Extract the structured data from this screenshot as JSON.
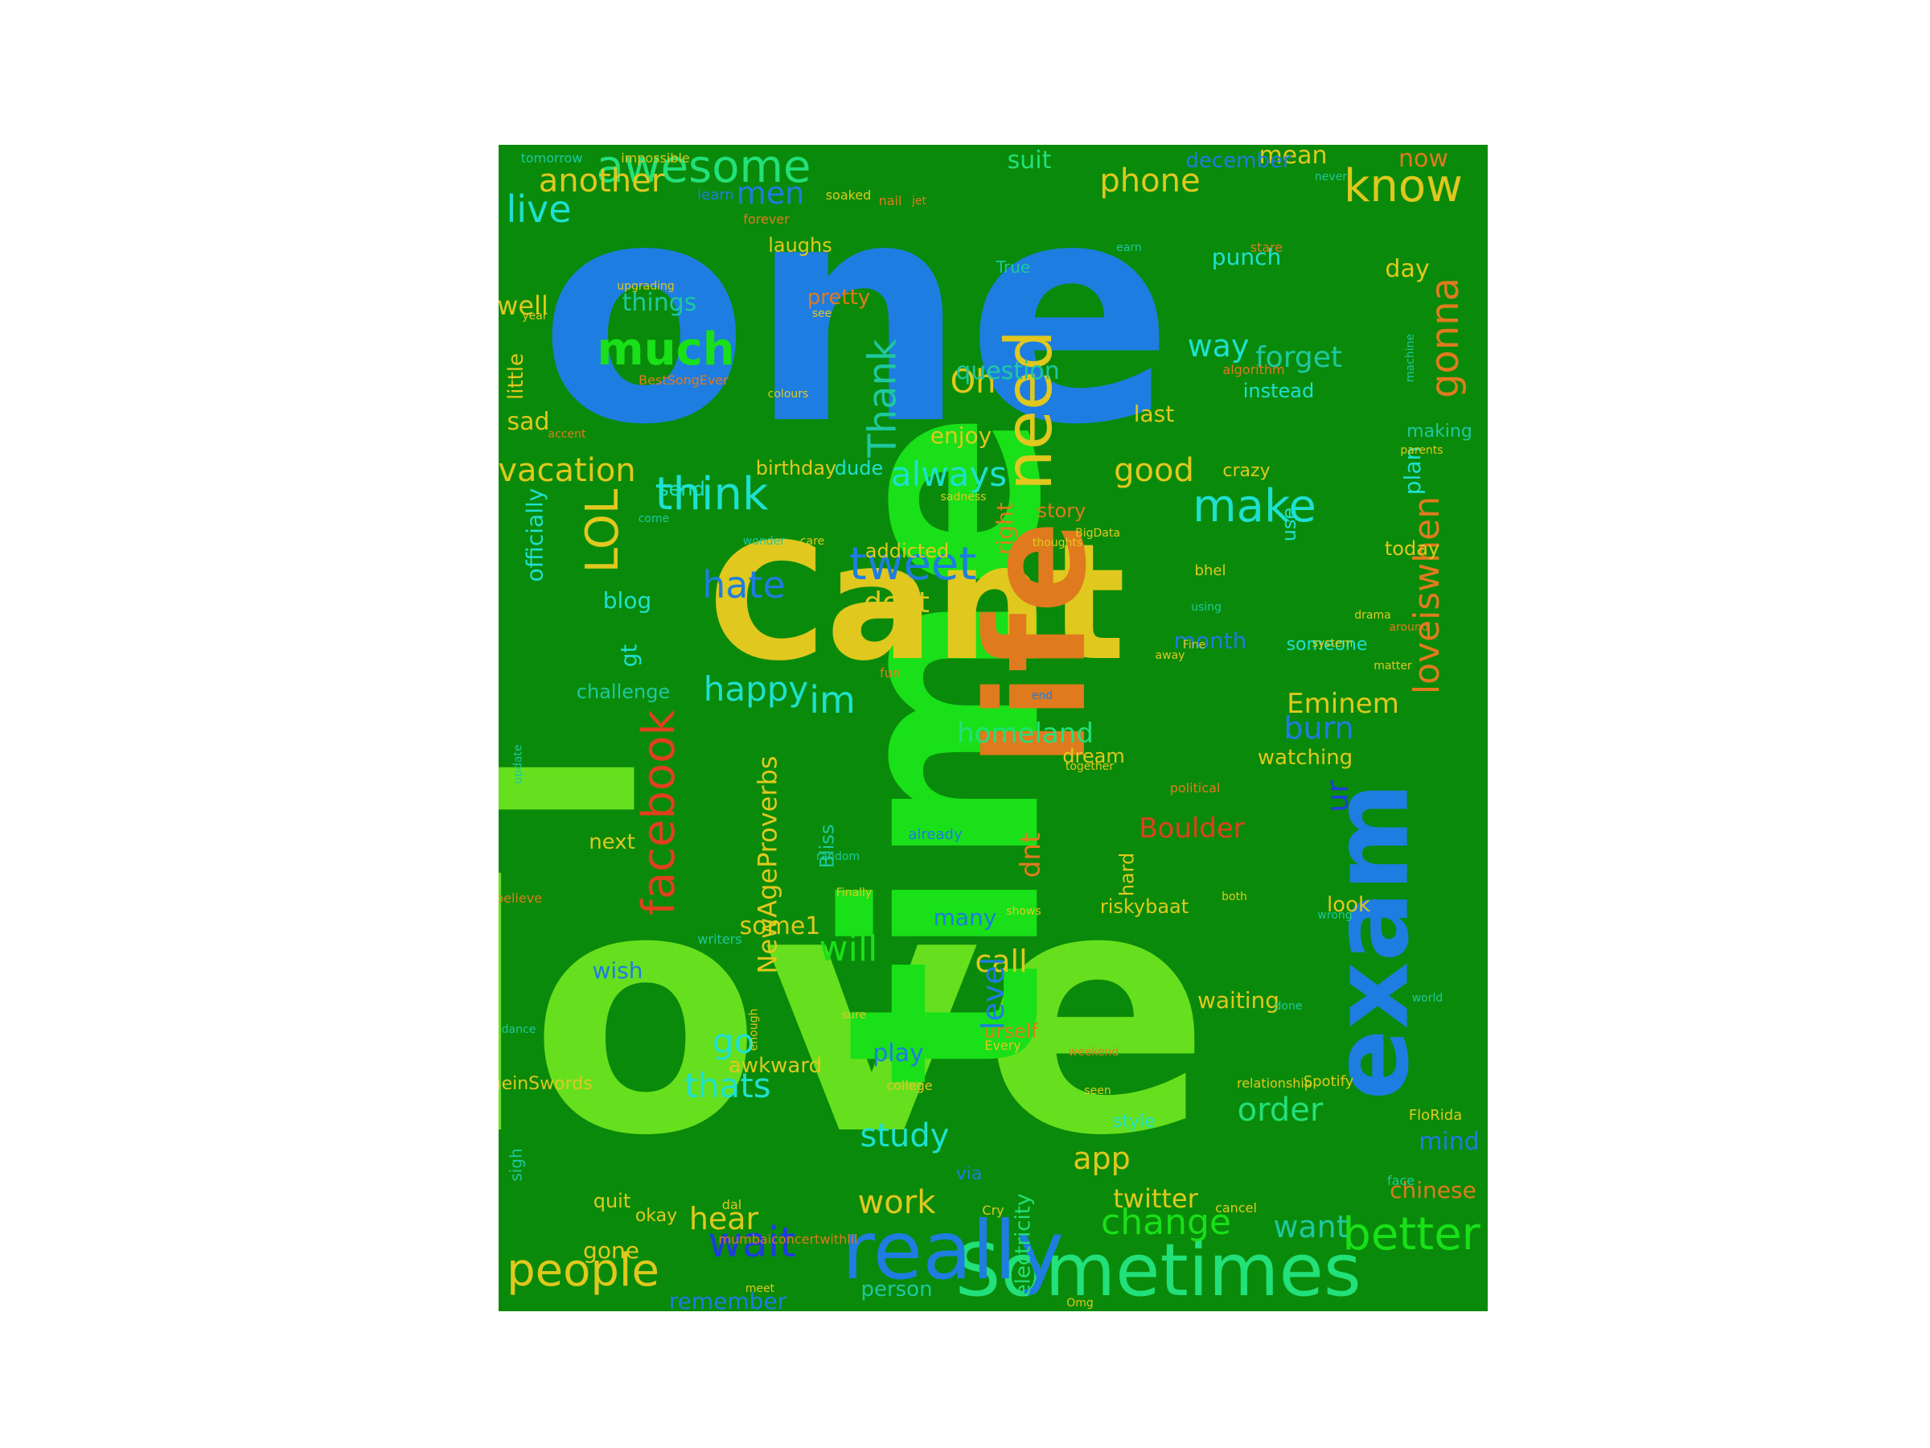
{
  "palette": {
    "background": "#0a8a0a",
    "blue": "#1e7de0",
    "lime": "#66e01e",
    "green": "#19e019",
    "mint": "#22e07a",
    "yellow": "#e0c81e",
    "orange": "#e07a1e",
    "red": "#e0401e",
    "cyan": "#1ee0d0",
    "navy": "#1e3ce0",
    "teal": "#1ec8a0"
  },
  "words": [
    {
      "text": "one",
      "color": "blue"
    },
    {
      "text": "love",
      "color": "lime"
    },
    {
      "text": "time",
      "color": "green"
    },
    {
      "text": "l",
      "color": "lime"
    },
    {
      "text": "Cant",
      "color": "yellow"
    },
    {
      "text": "life",
      "color": "orange"
    },
    {
      "text": "exam",
      "color": "blue"
    },
    {
      "text": "Sometimes",
      "color": "mint"
    },
    {
      "text": "really",
      "color": "blue"
    },
    {
      "text": "awesome",
      "color": "mint"
    },
    {
      "text": "know",
      "color": "yellow"
    },
    {
      "text": "need",
      "color": "yellow"
    },
    {
      "text": "much",
      "color": "green"
    },
    {
      "text": "facebook",
      "color": "red"
    },
    {
      "text": "LOL",
      "color": "yellow"
    },
    {
      "text": "think",
      "color": "cyan"
    },
    {
      "text": "tweet",
      "color": "blue"
    },
    {
      "text": "make",
      "color": "cyan"
    },
    {
      "text": "Thank",
      "color": "teal"
    },
    {
      "text": "loveiswhen",
      "color": "orange"
    },
    {
      "text": "gonna",
      "color": "orange"
    },
    {
      "text": "people",
      "color": "yellow"
    },
    {
      "text": "better",
      "color": "green"
    },
    {
      "text": "change",
      "color": "green"
    },
    {
      "text": "hate",
      "color": "blue"
    },
    {
      "text": "happy",
      "color": "cyan"
    },
    {
      "text": "wait",
      "color": "navy"
    },
    {
      "text": "another",
      "color": "yellow"
    },
    {
      "text": "live",
      "color": "cyan"
    },
    {
      "text": "phone",
      "color": "yellow"
    },
    {
      "text": "men",
      "color": "blue"
    },
    {
      "text": "vacation",
      "color": "yellow"
    },
    {
      "text": "always",
      "color": "cyan"
    },
    {
      "text": "good",
      "color": "yellow"
    },
    {
      "text": "way",
      "color": "cyan"
    },
    {
      "text": "forget",
      "color": "teal"
    },
    {
      "text": "Oh",
      "color": "yellow"
    },
    {
      "text": "im",
      "color": "cyan"
    },
    {
      "text": "dont",
      "color": "yellow"
    },
    {
      "text": "burn",
      "color": "blue"
    },
    {
      "text": "Eminem",
      "color": "yellow"
    },
    {
      "text": "NewAgeProverbs",
      "color": "yellow"
    },
    {
      "text": "will",
      "color": "green"
    },
    {
      "text": "go",
      "color": "cyan"
    },
    {
      "text": "thats",
      "color": "cyan"
    },
    {
      "text": "study",
      "color": "cyan"
    },
    {
      "text": "work",
      "color": "yellow"
    },
    {
      "text": "hear",
      "color": "yellow"
    },
    {
      "text": "order",
      "color": "mint"
    },
    {
      "text": "call",
      "color": "yellow"
    },
    {
      "text": "level",
      "color": "blue"
    },
    {
      "text": "app",
      "color": "yellow"
    },
    {
      "text": "twitter",
      "color": "yellow"
    },
    {
      "text": "want",
      "color": "teal"
    },
    {
      "text": "chinese",
      "color": "orange"
    },
    {
      "text": "mind",
      "color": "blue"
    },
    {
      "text": "Boulder",
      "color": "red"
    },
    {
      "text": "homeland",
      "color": "mint"
    },
    {
      "text": "question",
      "color": "teal"
    },
    {
      "text": "punch",
      "color": "cyan"
    },
    {
      "text": "day",
      "color": "yellow"
    },
    {
      "text": "mean",
      "color": "yellow"
    },
    {
      "text": "now",
      "color": "orange"
    },
    {
      "text": "suit",
      "color": "mint"
    },
    {
      "text": "december",
      "color": "blue"
    },
    {
      "text": "well",
      "color": "yellow"
    },
    {
      "text": "things",
      "color": "teal"
    },
    {
      "text": "sad",
      "color": "yellow"
    },
    {
      "text": "pretty",
      "color": "orange"
    },
    {
      "text": "laughs",
      "color": "yellow"
    },
    {
      "text": "instead",
      "color": "cyan"
    },
    {
      "text": "last",
      "color": "yellow"
    },
    {
      "text": "enjoy",
      "color": "yellow"
    },
    {
      "text": "plan",
      "color": "cyan"
    },
    {
      "text": "making",
      "color": "teal"
    },
    {
      "text": "crazy",
      "color": "yellow"
    },
    {
      "text": "send",
      "color": "cyan"
    },
    {
      "text": "birthday",
      "color": "yellow"
    },
    {
      "text": "dude",
      "color": "cyan"
    },
    {
      "text": "right",
      "color": "orange"
    },
    {
      "text": "story",
      "color": "orange"
    },
    {
      "text": "today",
      "color": "yellow"
    },
    {
      "text": "use",
      "color": "cyan"
    },
    {
      "text": "addicted",
      "color": "yellow"
    },
    {
      "text": "blog",
      "color": "cyan"
    },
    {
      "text": "officially",
      "color": "cyan"
    },
    {
      "text": "challenge",
      "color": "teal"
    },
    {
      "text": "gt",
      "color": "cyan"
    },
    {
      "text": "month",
      "color": "blue"
    },
    {
      "text": "someone",
      "color": "cyan"
    },
    {
      "text": "watching",
      "color": "yellow"
    },
    {
      "text": "dream",
      "color": "yellow"
    },
    {
      "text": "ur",
      "color": "navy"
    },
    {
      "text": "next",
      "color": "yellow"
    },
    {
      "text": "some1",
      "color": "yellow"
    },
    {
      "text": "dnt",
      "color": "orange"
    },
    {
      "text": "many",
      "color": "blue"
    },
    {
      "text": "riskybaat",
      "color": "yellow"
    },
    {
      "text": "look",
      "color": "yellow"
    },
    {
      "text": "wish",
      "color": "blue"
    },
    {
      "text": "awkward",
      "color": "yellow"
    },
    {
      "text": "play",
      "color": "blue"
    },
    {
      "text": "urself",
      "color": "orange"
    },
    {
      "text": "waiting",
      "color": "yellow"
    },
    {
      "text": "style",
      "color": "cyan"
    },
    {
      "text": "quit",
      "color": "yellow"
    },
    {
      "text": "okay",
      "color": "yellow"
    },
    {
      "text": "gone",
      "color": "yellow"
    },
    {
      "text": "remember",
      "color": "blue"
    },
    {
      "text": "person",
      "color": "teal"
    },
    {
      "text": "electricity",
      "color": "mint"
    },
    {
      "text": "Bliss",
      "color": "teal"
    },
    {
      "text": "hard",
      "color": "yellow"
    },
    {
      "text": "little",
      "color": "yellow"
    },
    {
      "text": "Spotify",
      "color": "yellow"
    },
    {
      "text": "FloRida",
      "color": "yellow"
    },
    {
      "text": "learn",
      "color": "blue"
    },
    {
      "text": "soaked",
      "color": "yellow"
    },
    {
      "text": "nail",
      "color": "orange"
    },
    {
      "text": "jet",
      "color": "orange"
    },
    {
      "text": "forever",
      "color": "orange"
    },
    {
      "text": "tomorrow",
      "color": "teal"
    },
    {
      "text": "impossible",
      "color": "yellow"
    },
    {
      "text": "upgrading",
      "color": "yellow"
    },
    {
      "text": "BestSongEver",
      "color": "orange"
    },
    {
      "text": "year",
      "color": "yellow"
    },
    {
      "text": "True",
      "color": "teal"
    },
    {
      "text": "see",
      "color": "yellow"
    },
    {
      "text": "colours",
      "color": "yellow"
    },
    {
      "text": "algorithm",
      "color": "orange"
    },
    {
      "text": "stare",
      "color": "orange"
    },
    {
      "text": "earn",
      "color": "teal"
    },
    {
      "text": "never",
      "color": "teal"
    },
    {
      "text": "machine",
      "color": "teal"
    },
    {
      "text": "parents",
      "color": "yellow"
    },
    {
      "text": "sadness",
      "color": "yellow"
    },
    {
      "text": "come",
      "color": "teal"
    },
    {
      "text": "wonder",
      "color": "teal"
    },
    {
      "text": "care",
      "color": "yellow"
    },
    {
      "text": "thoughts",
      "color": "yellow"
    },
    {
      "text": "BigData",
      "color": "yellow"
    },
    {
      "text": "bhel",
      "color": "yellow"
    },
    {
      "text": "using",
      "color": "teal"
    },
    {
      "text": "drama",
      "color": "yellow"
    },
    {
      "text": "around",
      "color": "orange"
    },
    {
      "text": "system",
      "color": "yellow"
    },
    {
      "text": "matter",
      "color": "yellow"
    },
    {
      "text": "away",
      "color": "yellow"
    },
    {
      "text": "Fine",
      "color": "yellow"
    },
    {
      "text": "fun",
      "color": "orange"
    },
    {
      "text": "end",
      "color": "blue"
    },
    {
      "text": "together",
      "color": "yellow"
    },
    {
      "text": "political",
      "color": "orange"
    },
    {
      "text": "update",
      "color": "teal"
    },
    {
      "text": "already",
      "color": "blue"
    },
    {
      "text": "random",
      "color": "teal"
    },
    {
      "text": "Finally",
      "color": "yellow"
    },
    {
      "text": "shows",
      "color": "yellow"
    },
    {
      "text": "both",
      "color": "yellow"
    },
    {
      "text": "wrong",
      "color": "teal"
    },
    {
      "text": "believe",
      "color": "orange"
    },
    {
      "text": "world",
      "color": "teal"
    },
    {
      "text": "done",
      "color": "teal"
    },
    {
      "text": "enough",
      "color": "yellow"
    },
    {
      "text": "sure",
      "color": "yellow"
    },
    {
      "text": "college",
      "color": "yellow"
    },
    {
      "text": "seen",
      "color": "yellow"
    },
    {
      "text": "relationship",
      "color": "yellow"
    },
    {
      "text": "dance",
      "color": "teal"
    },
    {
      "text": "TypicalmeinSwords",
      "color": "yellow"
    },
    {
      "text": "sigh",
      "color": "teal"
    },
    {
      "text": "via",
      "color": "blue"
    },
    {
      "text": "dal",
      "color": "yellow"
    },
    {
      "text": "Cry",
      "color": "yellow"
    },
    {
      "text": "cancel",
      "color": "yellow"
    },
    {
      "text": "face",
      "color": "teal"
    },
    {
      "text": "mumbaiconcertwithlil",
      "color": "orange"
    },
    {
      "text": "meet",
      "color": "yellow"
    },
    {
      "text": "Omg",
      "color": "yellow"
    },
    {
      "text": "Every",
      "color": "yellow"
    },
    {
      "text": "writers",
      "color": "teal"
    },
    {
      "text": "weekend",
      "color": "orange"
    },
    {
      "text": "accent",
      "color": "orange"
    },
    {
      "text": "lets",
      "color": "orange"
    },
    {
      "text": "buy",
      "color": "yellow"
    }
  ]
}
